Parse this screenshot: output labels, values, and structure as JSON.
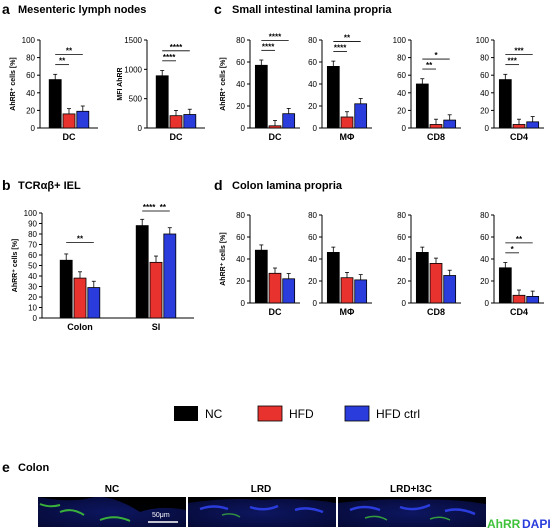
{
  "colors": {
    "nc": "#000000",
    "hfd": "#e8322d",
    "ctrl": "#2a3cdc",
    "green": "#3fc23a",
    "blue": "#2a3cdc"
  },
  "panels": {
    "a": {
      "letter": "a",
      "title": "Mesenteric lymph nodes"
    },
    "b": {
      "letter": "b",
      "title": "TCRαβ+ IEL"
    },
    "c": {
      "letter": "c",
      "title": "Small intestinal lamina propria"
    },
    "d": {
      "letter": "d",
      "title": "Colon lamina propria"
    },
    "e": {
      "letter": "e",
      "title": "Colon"
    }
  },
  "legend": {
    "items": [
      {
        "label": "NC",
        "color": "#000000"
      },
      {
        "label": "HFD",
        "color": "#e8322d"
      },
      {
        "label": "HFD ctrl",
        "color": "#2a3cdc"
      }
    ]
  },
  "micrographs": {
    "titles": [
      "NC",
      "LRD",
      "LRD+I3C"
    ],
    "scale_bar": "50μm",
    "stain_labels": [
      {
        "label": "AhRR",
        "color": "#3fc23a"
      },
      {
        "label": "DAPI",
        "color": "#2a3cdc"
      }
    ]
  },
  "chart_data": [
    {
      "id": "a1",
      "type": "bar",
      "ylabel": "AhRR⁺ cells [%]",
      "ylim": [
        0,
        100
      ],
      "yticks": [
        0,
        20,
        40,
        60,
        80,
        100
      ],
      "categories": [
        "DC"
      ],
      "series": [
        {
          "values": [
            55
          ]
        },
        {
          "values": [
            16
          ]
        },
        {
          "values": [
            19
          ]
        }
      ],
      "significance": [
        {
          "label": "**",
          "pair": [
            0,
            1
          ]
        },
        {
          "label": "**",
          "pair": [
            0,
            2
          ]
        }
      ]
    },
    {
      "id": "a2",
      "type": "bar",
      "ylabel": "MFI AhRR",
      "ylim": [
        0,
        1500
      ],
      "yticks": [
        0,
        500,
        1000,
        1500
      ],
      "categories": [
        "DC"
      ],
      "series": [
        {
          "values": [
            890
          ]
        },
        {
          "values": [
            210
          ]
        },
        {
          "values": [
            230
          ]
        }
      ],
      "significance": [
        {
          "label": "****",
          "pair": [
            0,
            1
          ]
        },
        {
          "label": "****",
          "pair": [
            0,
            2
          ]
        }
      ]
    },
    {
      "id": "b",
      "type": "bar",
      "ylabel": "AhRR⁺ cells [%]",
      "ylim": [
        0,
        100
      ],
      "yticks": [
        0,
        10,
        20,
        30,
        40,
        50,
        60,
        70,
        80,
        90,
        100
      ],
      "categories": [
        "Colon",
        "SI"
      ],
      "series": [
        {
          "values": [
            55,
            88
          ]
        },
        {
          "values": [
            38,
            53
          ]
        },
        {
          "values": [
            29,
            80
          ]
        }
      ],
      "significance": [
        {
          "label": "**",
          "cat": 0,
          "pair": [
            0,
            2
          ]
        },
        {
          "label": "****",
          "cat": 1,
          "pair": [
            0,
            1
          ]
        },
        {
          "label": "**",
          "cat": 1,
          "pair": [
            1,
            2
          ]
        }
      ]
    },
    {
      "id": "c1",
      "type": "bar",
      "ylabel": "AhRR⁺ cells [%]",
      "ylim": [
        0,
        80
      ],
      "yticks": [
        0,
        20,
        40,
        60,
        80
      ],
      "categories": [
        "DC"
      ],
      "series": [
        {
          "values": [
            57
          ]
        },
        {
          "values": [
            2
          ]
        },
        {
          "values": [
            13
          ]
        }
      ],
      "significance": [
        {
          "label": "****",
          "pair": [
            0,
            1
          ]
        },
        {
          "label": "****",
          "pair": [
            0,
            2
          ]
        }
      ]
    },
    {
      "id": "c2",
      "type": "bar",
      "ylim": [
        0,
        80
      ],
      "yticks": [
        0,
        20,
        40,
        60,
        80
      ],
      "categories": [
        "MΦ"
      ],
      "series": [
        {
          "values": [
            56
          ]
        },
        {
          "values": [
            10
          ]
        },
        {
          "values": [
            22
          ]
        }
      ],
      "significance": [
        {
          "label": "****",
          "pair": [
            0,
            1
          ]
        },
        {
          "label": "**",
          "pair": [
            0,
            2
          ]
        }
      ]
    },
    {
      "id": "c3",
      "type": "bar",
      "ylim": [
        0,
        100
      ],
      "yticks": [
        0,
        20,
        40,
        60,
        80,
        100
      ],
      "categories": [
        "CD8"
      ],
      "series": [
        {
          "values": [
            50
          ]
        },
        {
          "values": [
            4
          ]
        },
        {
          "values": [
            9
          ]
        }
      ],
      "significance": [
        {
          "label": "**",
          "pair": [
            0,
            1
          ]
        },
        {
          "label": "*",
          "pair": [
            0,
            2
          ]
        }
      ]
    },
    {
      "id": "c4",
      "type": "bar",
      "ylim": [
        0,
        100
      ],
      "yticks": [
        0,
        20,
        40,
        60,
        80,
        100
      ],
      "categories": [
        "CD4"
      ],
      "series": [
        {
          "values": [
            55
          ]
        },
        {
          "values": [
            4
          ]
        },
        {
          "values": [
            7
          ]
        }
      ],
      "significance": [
        {
          "label": "***",
          "pair": [
            0,
            1
          ]
        },
        {
          "label": "***",
          "pair": [
            0,
            2
          ]
        }
      ]
    },
    {
      "id": "d1",
      "type": "bar",
      "ylabel": "AhRR⁺ cells [%]",
      "ylim": [
        0,
        80
      ],
      "yticks": [
        0,
        20,
        40,
        60,
        80
      ],
      "categories": [
        "DC"
      ],
      "series": [
        {
          "values": [
            48
          ]
        },
        {
          "values": [
            27
          ]
        },
        {
          "values": [
            22
          ]
        }
      ],
      "significance": []
    },
    {
      "id": "d2",
      "type": "bar",
      "ylim": [
        0,
        80
      ],
      "yticks": [
        0,
        20,
        40,
        60,
        80
      ],
      "categories": [
        "MΦ"
      ],
      "series": [
        {
          "values": [
            46
          ]
        },
        {
          "values": [
            23
          ]
        },
        {
          "values": [
            21
          ]
        }
      ],
      "significance": []
    },
    {
      "id": "d3",
      "type": "bar",
      "ylim": [
        0,
        80
      ],
      "yticks": [
        0,
        20,
        40,
        60,
        80
      ],
      "categories": [
        "CD8"
      ],
      "series": [
        {
          "values": [
            46
          ]
        },
        {
          "values": [
            36
          ]
        },
        {
          "values": [
            25
          ]
        }
      ],
      "significance": []
    },
    {
      "id": "d4",
      "type": "bar",
      "ylim": [
        0,
        80
      ],
      "yticks": [
        0,
        20,
        40,
        60,
        80
      ],
      "categories": [
        "CD4"
      ],
      "series": [
        {
          "values": [
            32
          ]
        },
        {
          "values": [
            7
          ]
        },
        {
          "values": [
            6
          ]
        }
      ],
      "significance": [
        {
          "label": "*",
          "pair": [
            0,
            1
          ]
        },
        {
          "label": "**",
          "pair": [
            0,
            2
          ]
        }
      ]
    }
  ]
}
